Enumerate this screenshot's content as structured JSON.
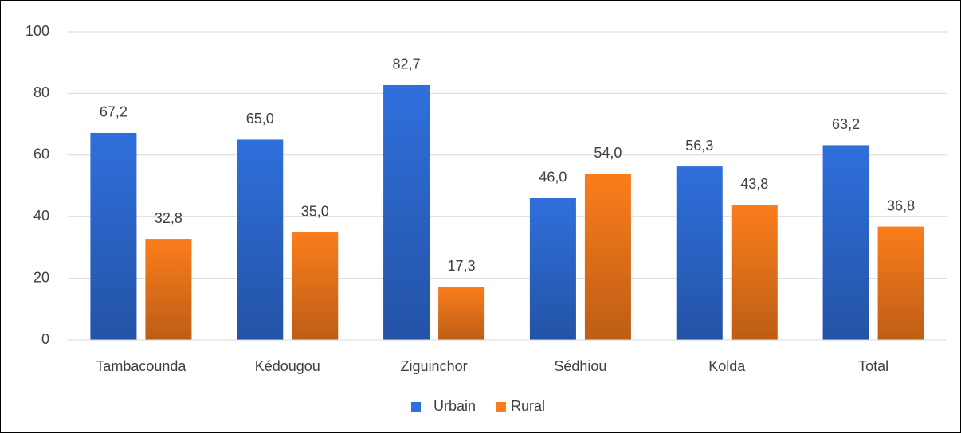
{
  "chart_data": {
    "type": "bar",
    "categories": [
      "Tambacounda",
      "Kédougou",
      "Ziguinchor",
      "Sédhiou",
      "Kolda",
      "Total"
    ],
    "series": [
      {
        "name": "Urbain",
        "color": "#2f6fdc",
        "values": [
          67.2,
          65.0,
          82.7,
          46.0,
          56.3,
          63.2
        ],
        "value_labels": [
          "67,2",
          "65,0",
          "82,7",
          "46,0",
          "56,3",
          "63,2"
        ]
      },
      {
        "name": "Rural",
        "color": "#fb7d1c",
        "values": [
          32.8,
          35.0,
          17.3,
          54.0,
          43.8,
          36.8
        ],
        "value_labels": [
          "32,8",
          "35,0",
          "17,3",
          "54,0",
          "43,8",
          "36,8"
        ]
      }
    ],
    "ylim": [
      0,
      100
    ],
    "yticks": [
      0,
      20,
      40,
      60,
      80,
      100
    ],
    "grid": true,
    "legend": "bottom"
  }
}
